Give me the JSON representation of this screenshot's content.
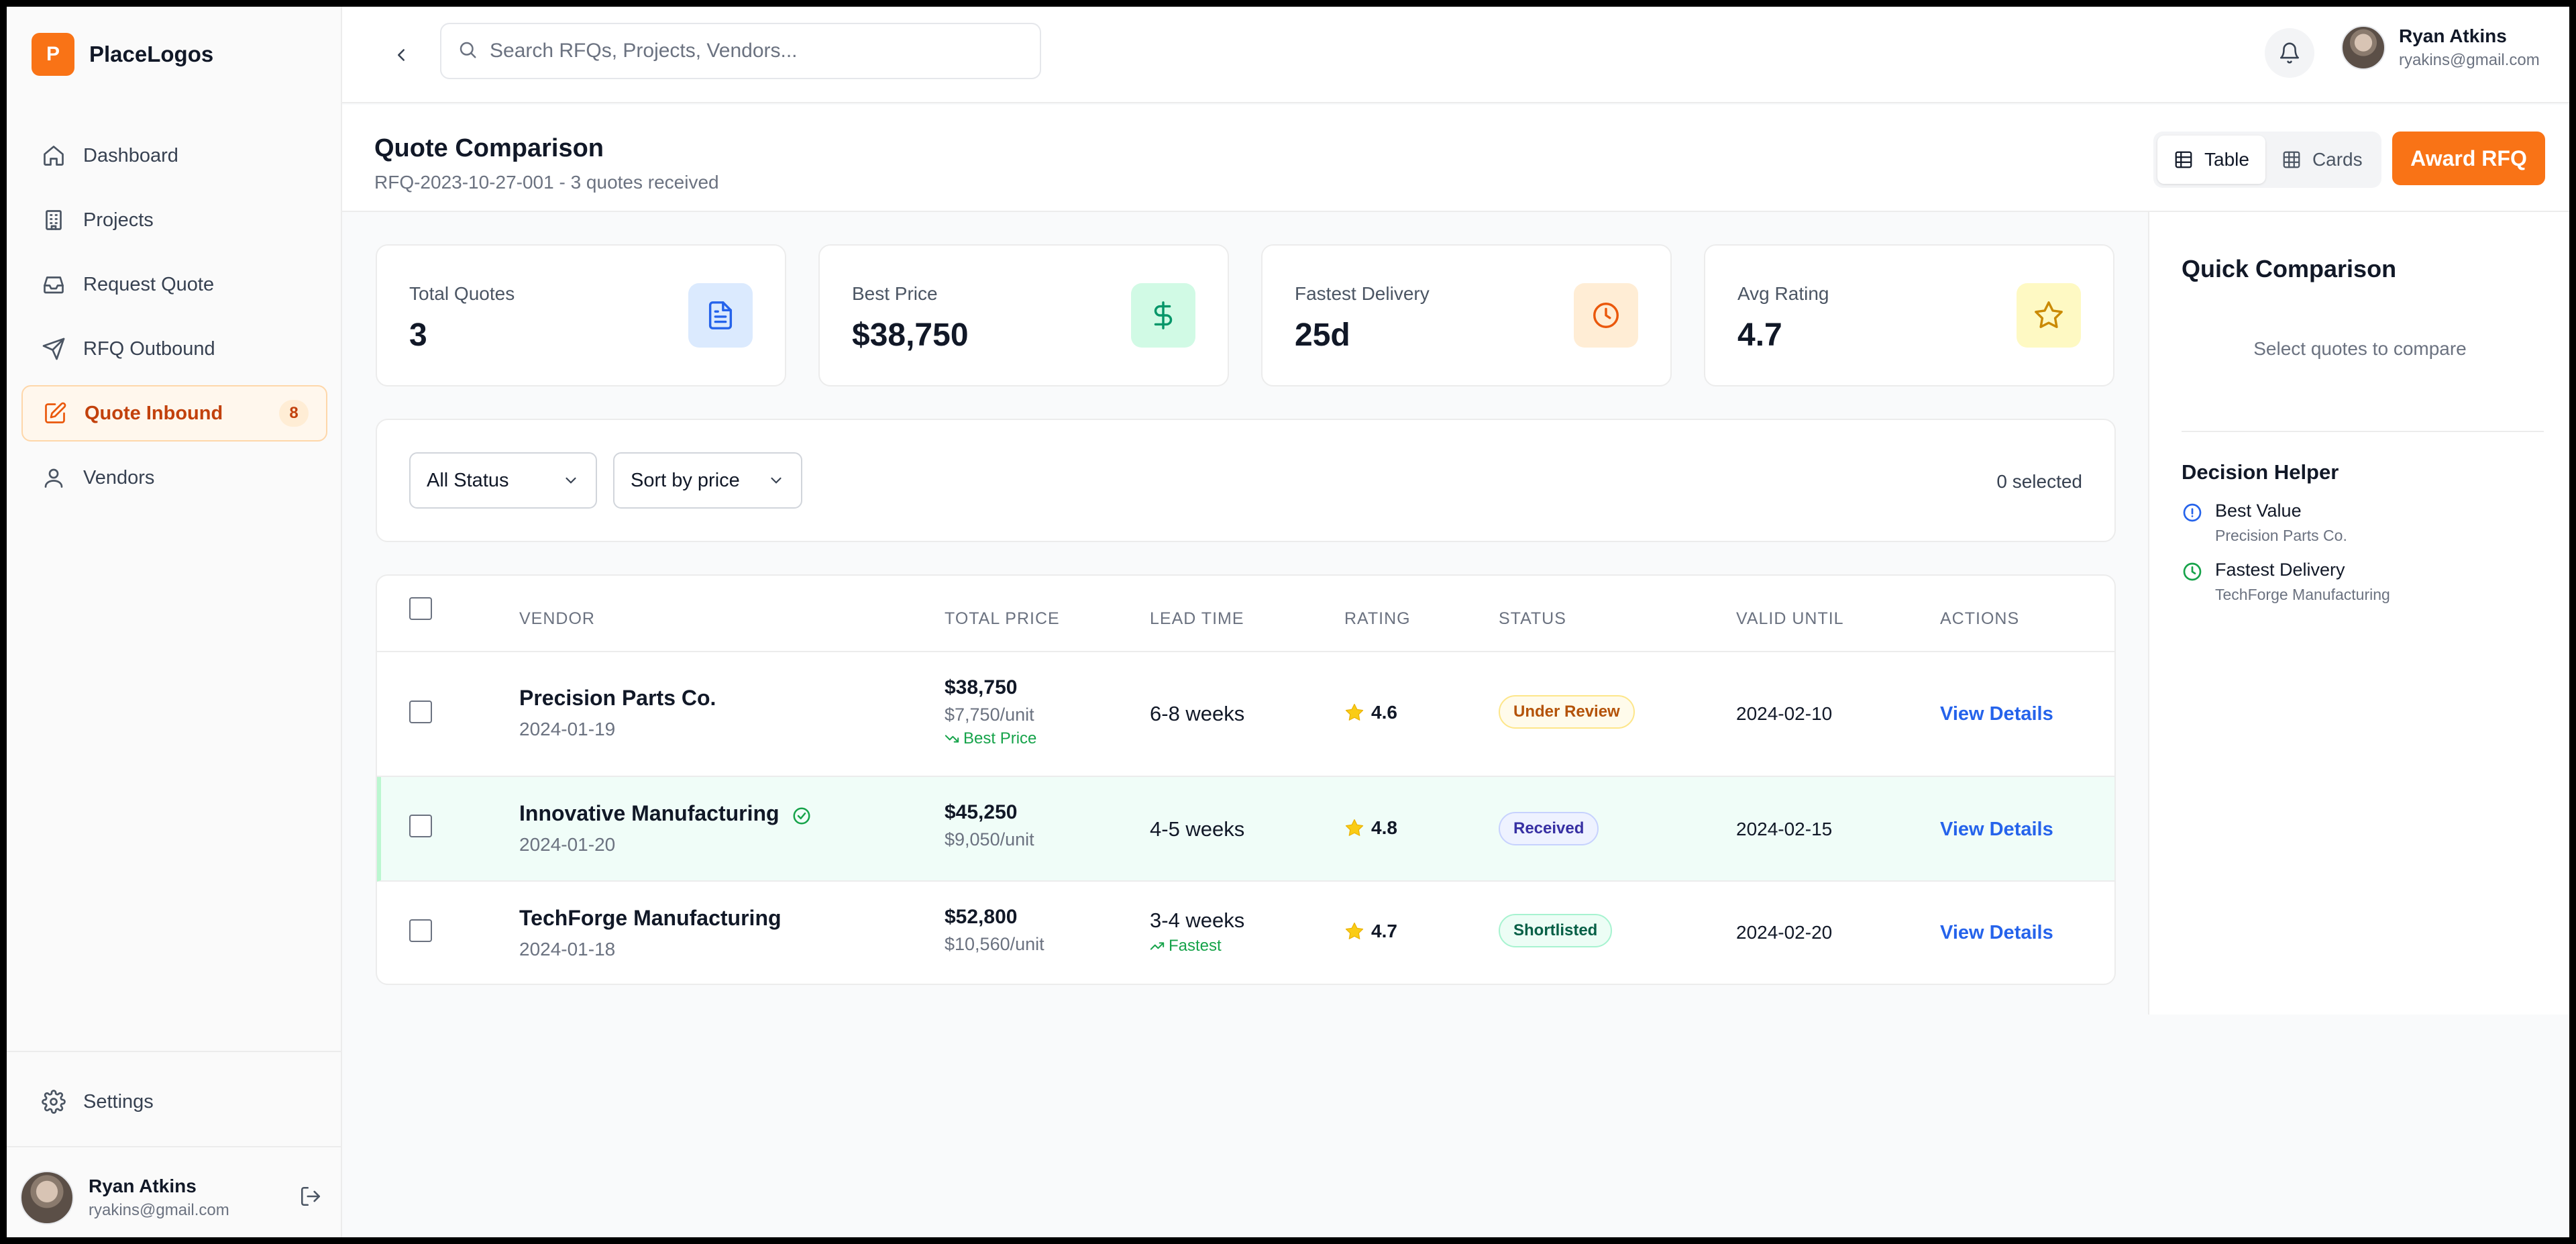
{
  "brand": {
    "logo_letter": "P",
    "name": "PlaceLogos",
    "accent": "#f97316"
  },
  "sidebar": {
    "items": [
      {
        "label": "Dashboard",
        "icon": "home-icon"
      },
      {
        "label": "Projects",
        "icon": "building-icon"
      },
      {
        "label": "Request Quote",
        "icon": "inbox-icon"
      },
      {
        "label": "RFQ Outbound",
        "icon": "send-icon"
      },
      {
        "label": "Quote Inbound",
        "icon": "edit-document-icon",
        "active": true,
        "badge": "8"
      },
      {
        "label": "Vendors",
        "icon": "user-icon"
      }
    ],
    "settings_label": "Settings",
    "user": {
      "name": "Ryan Atkins",
      "email": "ryakins@gmail.com"
    }
  },
  "topbar": {
    "search_placeholder": "Search RFQs, Projects, Vendors...",
    "user": {
      "name": "Ryan Atkins",
      "email": "ryakins@gmail.com"
    }
  },
  "page": {
    "title": "Quote Comparison",
    "subtitle": "RFQ-2023-10-27-001 - 3 quotes received",
    "view_toggle": {
      "table": "Table",
      "cards": "Cards",
      "selected": "Table"
    },
    "award_button": "Award RFQ"
  },
  "stats": [
    {
      "label": "Total Quotes",
      "value": "3",
      "icon": "document-icon",
      "color": "#2563eb",
      "bg": "#dbeafe"
    },
    {
      "label": "Best Price",
      "value": "$38,750",
      "icon": "dollar-icon",
      "color": "#059669",
      "bg": "#d1fae5"
    },
    {
      "label": "Fastest Delivery",
      "value": "25d",
      "icon": "clock-icon",
      "color": "#ea580c",
      "bg": "#ffedd5"
    },
    {
      "label": "Avg Rating",
      "value": "4.7",
      "icon": "star-icon",
      "color": "#ca8a04",
      "bg": "#fef9c3"
    }
  ],
  "filters": {
    "status": "All Status",
    "sort": "Sort by price",
    "selected_count": "0 selected"
  },
  "table": {
    "headers": {
      "vendor": "VENDOR",
      "total_price": "TOTAL PRICE",
      "lead_time": "LEAD TIME",
      "rating": "RATING",
      "status": "STATUS",
      "valid_until": "VALID UNTIL",
      "actions": "ACTIONS"
    },
    "rows": [
      {
        "vendor": "Precision Parts Co.",
        "date": "2024-01-19",
        "price": "$38,750",
        "unit": "$7,750/unit",
        "price_tag": "Best Price",
        "lead": "6-8 weeks",
        "lead_tag": "",
        "rating": "4.6",
        "status": "Under Review",
        "valid": "2024-02-10",
        "action": "View Details"
      },
      {
        "vendor": "Innovative Manufacturing",
        "date": "2024-01-20",
        "price": "$45,250",
        "unit": "$9,050/unit",
        "price_tag": "",
        "lead": "4-5 weeks",
        "lead_tag": "",
        "rating": "4.8",
        "status": "Received",
        "valid": "2024-02-15",
        "action": "View Details"
      },
      {
        "vendor": "TechForge Manufacturing",
        "date": "2024-01-18",
        "price": "$52,800",
        "unit": "$10,560/unit",
        "price_tag": "",
        "lead": "3-4 weeks",
        "lead_tag": "Fastest",
        "rating": "4.7",
        "status": "Shortlisted",
        "valid": "2024-02-20",
        "action": "View Details"
      }
    ]
  },
  "right_panel": {
    "title": "Quick Comparison",
    "empty_text": "Select quotes to compare",
    "helper_title": "Decision Helper",
    "helpers": [
      {
        "label": "Best Value",
        "value": "Precision Parts Co.",
        "icon": "info-circle-icon",
        "color": "#2563eb"
      },
      {
        "label": "Fastest Delivery",
        "value": "TechForge Manufacturing",
        "icon": "clock-icon",
        "color": "#16a34a"
      }
    ]
  }
}
